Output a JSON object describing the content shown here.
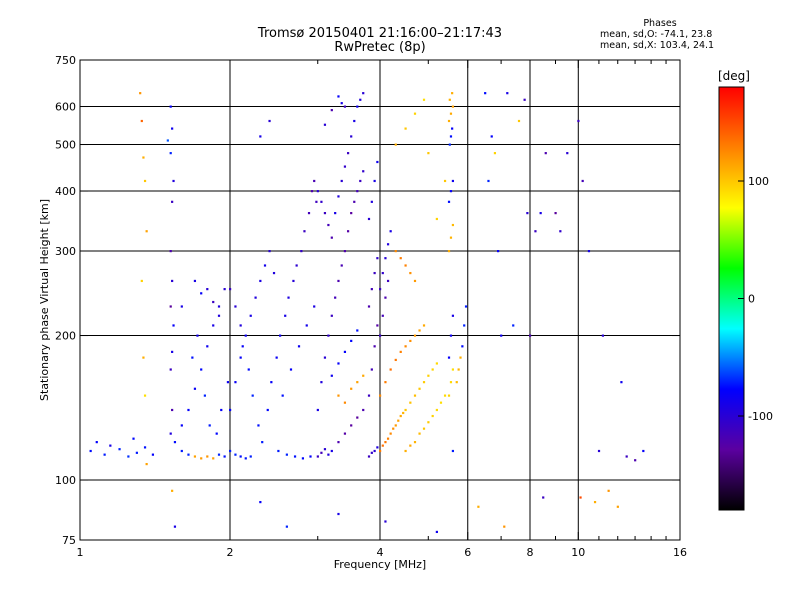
{
  "title": {
    "line1": "Tromsø 20150401 21:16:00–21:17:43",
    "line2": "RwPretec (8p)"
  },
  "stats": {
    "header": "Phases",
    "line_o": "mean, sd,O: -74.1, 23.8",
    "line_x": "mean, sd,X: 103.4, 24.1"
  },
  "colorbar": {
    "label": "[deg]",
    "ticks": [
      {
        "value": 100,
        "label": "100"
      },
      {
        "value": 0,
        "label": "0"
      },
      {
        "value": -100,
        "label": "-100"
      }
    ],
    "range": [
      -180,
      180
    ],
    "colors": [
      "#000000",
      "#5b00a0",
      "#0000ff",
      "#00ffff",
      "#00ff00",
      "#ffff00",
      "#ff8000",
      "#ff0000"
    ]
  },
  "chart_data": {
    "type": "scatter",
    "xlabel": "Frequency [MHz]",
    "ylabel": "Stationary phase Virtual Height [km]",
    "xscale": "log",
    "yscale": "log",
    "xlim": [
      1,
      16
    ],
    "ylim": [
      75,
      750
    ],
    "x_ticks": [
      {
        "value": 1,
        "label": "1"
      },
      {
        "value": 2,
        "label": "2"
      },
      {
        "value": 4,
        "label": "4"
      },
      {
        "value": 6,
        "label": "6"
      },
      {
        "value": 8,
        "label": "8"
      },
      {
        "value": 10,
        "label": "10"
      },
      {
        "value": 16,
        "label": "16"
      }
    ],
    "x_minor": [
      3,
      5,
      7,
      9,
      11,
      12,
      13,
      14,
      15
    ],
    "y_ticks": [
      {
        "value": 75,
        "label": "75"
      },
      {
        "value": 100,
        "label": "100"
      },
      {
        "value": 200,
        "label": "200"
      },
      {
        "value": 300,
        "label": "300"
      },
      {
        "value": 400,
        "label": "400"
      },
      {
        "value": 500,
        "label": "500"
      },
      {
        "value": 600,
        "label": "600"
      },
      {
        "value": 750,
        "label": "750"
      }
    ],
    "gridlines_x": [
      2,
      4,
      6,
      8,
      10
    ],
    "gridlines_y": [
      100,
      200,
      300,
      400,
      500,
      600
    ],
    "grid": true,
    "points": [
      [
        1.05,
        115,
        -75
      ],
      [
        1.08,
        120,
        -78
      ],
      [
        1.12,
        113,
        -72
      ],
      [
        1.15,
        118,
        -90
      ],
      [
        1.2,
        116,
        -70
      ],
      [
        1.25,
        112,
        -68
      ],
      [
        1.28,
        122,
        -76
      ],
      [
        1.3,
        114,
        -72
      ],
      [
        1.35,
        117,
        -74
      ],
      [
        1.4,
        113,
        -78
      ],
      [
        1.32,
        640,
        120
      ],
      [
        1.33,
        560,
        140
      ],
      [
        1.34,
        470,
        110
      ],
      [
        1.35,
        420,
        100
      ],
      [
        1.36,
        330,
        115
      ],
      [
        1.33,
        260,
        95
      ],
      [
        1.34,
        180,
        110
      ],
      [
        1.35,
        150,
        90
      ],
      [
        1.36,
        108,
        115
      ],
      [
        1.52,
        600,
        -80
      ],
      [
        1.53,
        540,
        -85
      ],
      [
        1.52,
        480,
        -70
      ],
      [
        1.5,
        510,
        -60
      ],
      [
        1.54,
        420,
        -95
      ],
      [
        1.53,
        380,
        -110
      ],
      [
        1.52,
        300,
        -120
      ],
      [
        1.53,
        260,
        -100
      ],
      [
        1.52,
        230,
        -130
      ],
      [
        1.54,
        210,
        -80
      ],
      [
        1.53,
        185,
        -90
      ],
      [
        1.52,
        170,
        -110
      ],
      [
        1.53,
        140,
        -120
      ],
      [
        1.52,
        125,
        -95
      ],
      [
        1.53,
        95,
        110
      ],
      [
        1.55,
        120,
        -75
      ],
      [
        1.6,
        115,
        -72
      ],
      [
        1.65,
        113,
        -70
      ],
      [
        1.7,
        112,
        115
      ],
      [
        1.75,
        111,
        118
      ],
      [
        1.8,
        112,
        120
      ],
      [
        1.85,
        111,
        115
      ],
      [
        1.9,
        113,
        -70
      ],
      [
        1.95,
        112,
        -74
      ],
      [
        1.6,
        130,
        -80
      ],
      [
        1.65,
        140,
        -78
      ],
      [
        1.7,
        155,
        -82
      ],
      [
        1.75,
        170,
        -76
      ],
      [
        1.8,
        190,
        -85
      ],
      [
        1.85,
        210,
        -90
      ],
      [
        1.9,
        230,
        -95
      ],
      [
        1.95,
        250,
        -100
      ],
      [
        1.7,
        260,
        -90
      ],
      [
        1.75,
        245,
        -80
      ],
      [
        1.8,
        250,
        -100
      ],
      [
        1.85,
        235,
        -110
      ],
      [
        1.9,
        220,
        -95
      ],
      [
        1.68,
        180,
        -74
      ],
      [
        1.72,
        200,
        -88
      ],
      [
        1.78,
        150,
        -70
      ],
      [
        1.82,
        130,
        -72
      ],
      [
        1.88,
        125,
        -76
      ],
      [
        1.92,
        140,
        -80
      ],
      [
        1.98,
        160,
        -84
      ],
      [
        1.6,
        230,
        -90
      ],
      [
        2.0,
        115,
        -72
      ],
      [
        2.05,
        113,
        -70
      ],
      [
        2.1,
        112,
        -75
      ],
      [
        2.15,
        111,
        -73
      ],
      [
        2.2,
        112,
        -71
      ],
      [
        2.0,
        140,
        -78
      ],
      [
        2.05,
        160,
        -82
      ],
      [
        2.1,
        180,
        -80
      ],
      [
        2.15,
        200,
        -85
      ],
      [
        2.2,
        220,
        -90
      ],
      [
        2.25,
        240,
        -95
      ],
      [
        2.3,
        260,
        -92
      ],
      [
        2.35,
        280,
        -88
      ],
      [
        2.4,
        300,
        -100
      ],
      [
        2.45,
        270,
        -95
      ],
      [
        2.0,
        250,
        -110
      ],
      [
        2.05,
        230,
        -100
      ],
      [
        2.1,
        210,
        -95
      ],
      [
        2.12,
        190,
        -80
      ],
      [
        2.18,
        170,
        -75
      ],
      [
        2.22,
        150,
        -70
      ],
      [
        2.28,
        130,
        -74
      ],
      [
        2.32,
        120,
        -72
      ],
      [
        2.38,
        140,
        -76
      ],
      [
        2.42,
        160,
        -80
      ],
      [
        2.48,
        180,
        -82
      ],
      [
        2.52,
        200,
        -86
      ],
      [
        2.58,
        220,
        -90
      ],
      [
        2.62,
        240,
        -94
      ],
      [
        2.68,
        260,
        -98
      ],
      [
        2.72,
        280,
        -102
      ],
      [
        2.78,
        300,
        -106
      ],
      [
        2.82,
        330,
        -110
      ],
      [
        2.88,
        360,
        -115
      ],
      [
        2.92,
        400,
        -120
      ],
      [
        2.95,
        420,
        -118
      ],
      [
        2.98,
        380,
        -112
      ],
      [
        2.5,
        115,
        -72
      ],
      [
        2.6,
        113,
        -70
      ],
      [
        2.7,
        112,
        -74
      ],
      [
        2.8,
        111,
        -76
      ],
      [
        2.9,
        112,
        -78
      ],
      [
        2.55,
        150,
        -74
      ],
      [
        2.65,
        170,
        -80
      ],
      [
        2.75,
        190,
        -84
      ],
      [
        2.85,
        210,
        -88
      ],
      [
        2.95,
        230,
        -92
      ],
      [
        2.4,
        560,
        -100
      ],
      [
        2.3,
        520,
        -90
      ],
      [
        3.0,
        112,
        -110
      ],
      [
        3.05,
        114,
        -115
      ],
      [
        3.1,
        116,
        -100
      ],
      [
        3.15,
        113,
        -95
      ],
      [
        3.2,
        115,
        -90
      ],
      [
        3.0,
        140,
        -90
      ],
      [
        3.05,
        160,
        -95
      ],
      [
        3.1,
        180,
        -100
      ],
      [
        3.15,
        200,
        -105
      ],
      [
        3.2,
        220,
        -110
      ],
      [
        3.25,
        240,
        -115
      ],
      [
        3.3,
        260,
        -120
      ],
      [
        3.35,
        280,
        -118
      ],
      [
        3.4,
        300,
        -122
      ],
      [
        3.45,
        330,
        -125
      ],
      [
        3.5,
        360,
        -128
      ],
      [
        3.55,
        380,
        -120
      ],
      [
        3.6,
        400,
        -115
      ],
      [
        3.65,
        420,
        -110
      ],
      [
        3.7,
        440,
        -105
      ],
      [
        3.0,
        400,
        -100
      ],
      [
        3.05,
        380,
        -105
      ],
      [
        3.1,
        360,
        -110
      ],
      [
        3.15,
        340,
        -115
      ],
      [
        3.2,
        320,
        -120
      ],
      [
        3.25,
        360,
        -90
      ],
      [
        3.3,
        390,
        -95
      ],
      [
        3.35,
        420,
        -100
      ],
      [
        3.4,
        450,
        -105
      ],
      [
        3.45,
        480,
        -110
      ],
      [
        3.5,
        520,
        -100
      ],
      [
        3.55,
        560,
        -90
      ],
      [
        3.6,
        600,
        -85
      ],
      [
        3.65,
        620,
        -95
      ],
      [
        3.7,
        640,
        -100
      ],
      [
        3.3,
        630,
        -80
      ],
      [
        3.35,
        610,
        -90
      ],
      [
        3.4,
        600,
        -110
      ],
      [
        3.2,
        590,
        -120
      ],
      [
        3.1,
        550,
        -100
      ],
      [
        3.3,
        120,
        -120
      ],
      [
        3.4,
        125,
        -125
      ],
      [
        3.5,
        130,
        -128
      ],
      [
        3.6,
        135,
        -130
      ],
      [
        3.7,
        140,
        -120
      ],
      [
        3.3,
        150,
        120
      ],
      [
        3.4,
        145,
        125
      ],
      [
        3.5,
        155,
        118
      ],
      [
        3.6,
        160,
        115
      ],
      [
        3.7,
        165,
        112
      ],
      [
        3.2,
        165,
        -85
      ],
      [
        3.3,
        175,
        -80
      ],
      [
        3.4,
        185,
        -78
      ],
      [
        3.5,
        195,
        -76
      ],
      [
        3.6,
        205,
        -74
      ],
      [
        3.8,
        112,
        -110
      ],
      [
        3.85,
        114,
        -105
      ],
      [
        3.9,
        115,
        -100
      ],
      [
        3.95,
        117,
        -95
      ],
      [
        3.8,
        150,
        -110
      ],
      [
        3.85,
        170,
        -115
      ],
      [
        3.9,
        190,
        -120
      ],
      [
        3.95,
        210,
        -125
      ],
      [
        3.8,
        230,
        -120
      ],
      [
        3.85,
        250,
        -115
      ],
      [
        3.9,
        270,
        -110
      ],
      [
        3.95,
        290,
        -105
      ],
      [
        3.8,
        350,
        -100
      ],
      [
        3.85,
        380,
        -95
      ],
      [
        3.9,
        420,
        -90
      ],
      [
        3.95,
        460,
        -85
      ],
      [
        4.0,
        115,
        130
      ],
      [
        4.05,
        118,
        135
      ],
      [
        4.1,
        120,
        132
      ],
      [
        4.15,
        122,
        128
      ],
      [
        4.2,
        125,
        125
      ],
      [
        4.25,
        128,
        122
      ],
      [
        4.3,
        130,
        118
      ],
      [
        4.35,
        133,
        115
      ],
      [
        4.4,
        136,
        112
      ],
      [
        4.45,
        138,
        108
      ],
      [
        4.0,
        150,
        125
      ],
      [
        4.1,
        160,
        130
      ],
      [
        4.2,
        170,
        135
      ],
      [
        4.3,
        178,
        132
      ],
      [
        4.4,
        185,
        128
      ],
      [
        4.5,
        190,
        125
      ],
      [
        4.6,
        195,
        122
      ],
      [
        4.7,
        200,
        118
      ],
      [
        4.8,
        205,
        115
      ],
      [
        4.9,
        210,
        112
      ],
      [
        4.0,
        250,
        -110
      ],
      [
        4.05,
        270,
        -105
      ],
      [
        4.1,
        290,
        -100
      ],
      [
        4.15,
        310,
        -95
      ],
      [
        4.2,
        330,
        -90
      ],
      [
        4.3,
        300,
        125
      ],
      [
        4.4,
        290,
        130
      ],
      [
        4.5,
        280,
        128
      ],
      [
        4.6,
        270,
        122
      ],
      [
        4.7,
        260,
        118
      ],
      [
        4.0,
        200,
        -110
      ],
      [
        4.05,
        220,
        -115
      ],
      [
        4.1,
        240,
        -120
      ],
      [
        4.15,
        260,
        -112
      ],
      [
        4.5,
        115,
        110
      ],
      [
        4.6,
        118,
        112
      ],
      [
        4.7,
        120,
        108
      ],
      [
        4.8,
        125,
        105
      ],
      [
        4.9,
        128,
        100
      ],
      [
        5.0,
        132,
        98
      ],
      [
        5.1,
        136,
        95
      ],
      [
        5.2,
        140,
        92
      ],
      [
        5.3,
        145,
        90
      ],
      [
        5.4,
        150,
        92
      ],
      [
        4.5,
        140,
        100
      ],
      [
        4.6,
        145,
        102
      ],
      [
        4.7,
        150,
        104
      ],
      [
        4.8,
        155,
        100
      ],
      [
        4.9,
        160,
        98
      ],
      [
        5.0,
        165,
        96
      ],
      [
        5.1,
        170,
        94
      ],
      [
        5.2,
        175,
        92
      ],
      [
        4.3,
        500,
        110
      ],
      [
        4.5,
        540,
        100
      ],
      [
        4.7,
        580,
        95
      ],
      [
        4.9,
        620,
        90
      ],
      [
        5.0,
        480,
        100
      ],
      [
        5.2,
        350,
        95
      ],
      [
        5.4,
        420,
        100
      ],
      [
        5.5,
        150,
        95
      ],
      [
        5.55,
        160,
        92
      ],
      [
        5.6,
        170,
        90
      ],
      [
        5.5,
        180,
        -80
      ],
      [
        5.55,
        200,
        -85
      ],
      [
        5.6,
        220,
        -90
      ],
      [
        5.5,
        300,
        110
      ],
      [
        5.55,
        320,
        108
      ],
      [
        5.6,
        340,
        105
      ],
      [
        5.5,
        380,
        -75
      ],
      [
        5.55,
        400,
        -80
      ],
      [
        5.6,
        420,
        -85
      ],
      [
        5.52,
        500,
        -70
      ],
      [
        5.55,
        520,
        -75
      ],
      [
        5.58,
        540,
        -80
      ],
      [
        5.5,
        560,
        110
      ],
      [
        5.55,
        580,
        112
      ],
      [
        5.6,
        600,
        115
      ],
      [
        5.52,
        620,
        108
      ],
      [
        5.58,
        640,
        110
      ],
      [
        5.6,
        115,
        -72
      ],
      [
        5.7,
        160,
        105
      ],
      [
        5.75,
        170,
        108
      ],
      [
        5.8,
        180,
        110
      ],
      [
        5.85,
        190,
        -75
      ],
      [
        5.9,
        210,
        -70
      ],
      [
        5.95,
        230,
        -72
      ],
      [
        6.5,
        640,
        -75
      ],
      [
        6.6,
        420,
        -70
      ],
      [
        6.7,
        520,
        -78
      ],
      [
        6.8,
        480,
        95
      ],
      [
        6.9,
        300,
        -80
      ],
      [
        7.0,
        200,
        -85
      ],
      [
        7.2,
        640,
        -90
      ],
      [
        7.4,
        210,
        -70
      ],
      [
        7.6,
        560,
        100
      ],
      [
        7.8,
        620,
        -110
      ],
      [
        7.9,
        360,
        -100
      ],
      [
        8.0,
        200,
        -120
      ],
      [
        8.2,
        330,
        -110
      ],
      [
        8.4,
        360,
        -90
      ],
      [
        8.6,
        480,
        -120
      ],
      [
        9.0,
        360,
        -130
      ],
      [
        9.2,
        330,
        -105
      ],
      [
        9.5,
        480,
        -100
      ],
      [
        10.0,
        560,
        -110
      ],
      [
        10.2,
        420,
        -115
      ],
      [
        10.8,
        90,
        110
      ],
      [
        11.0,
        115,
        -100
      ],
      [
        11.5,
        95,
        120
      ],
      [
        12.0,
        88,
        115
      ],
      [
        12.5,
        112,
        -110
      ],
      [
        13.0,
        110,
        -120
      ],
      [
        13.5,
        115,
        -80
      ],
      [
        10.5,
        300,
        -90
      ],
      [
        11.2,
        200,
        -100
      ],
      [
        12.2,
        160,
        -85
      ],
      [
        10.1,
        92,
        150
      ],
      [
        2.3,
        90,
        -80
      ],
      [
        2.6,
        80,
        -70
      ],
      [
        3.3,
        85,
        -90
      ],
      [
        4.1,
        82,
        -100
      ],
      [
        5.2,
        78,
        -85
      ],
      [
        6.3,
        88,
        110
      ],
      [
        7.1,
        80,
        120
      ],
      [
        8.5,
        92,
        -110
      ],
      [
        1.55,
        80,
        -90
      ]
    ]
  }
}
